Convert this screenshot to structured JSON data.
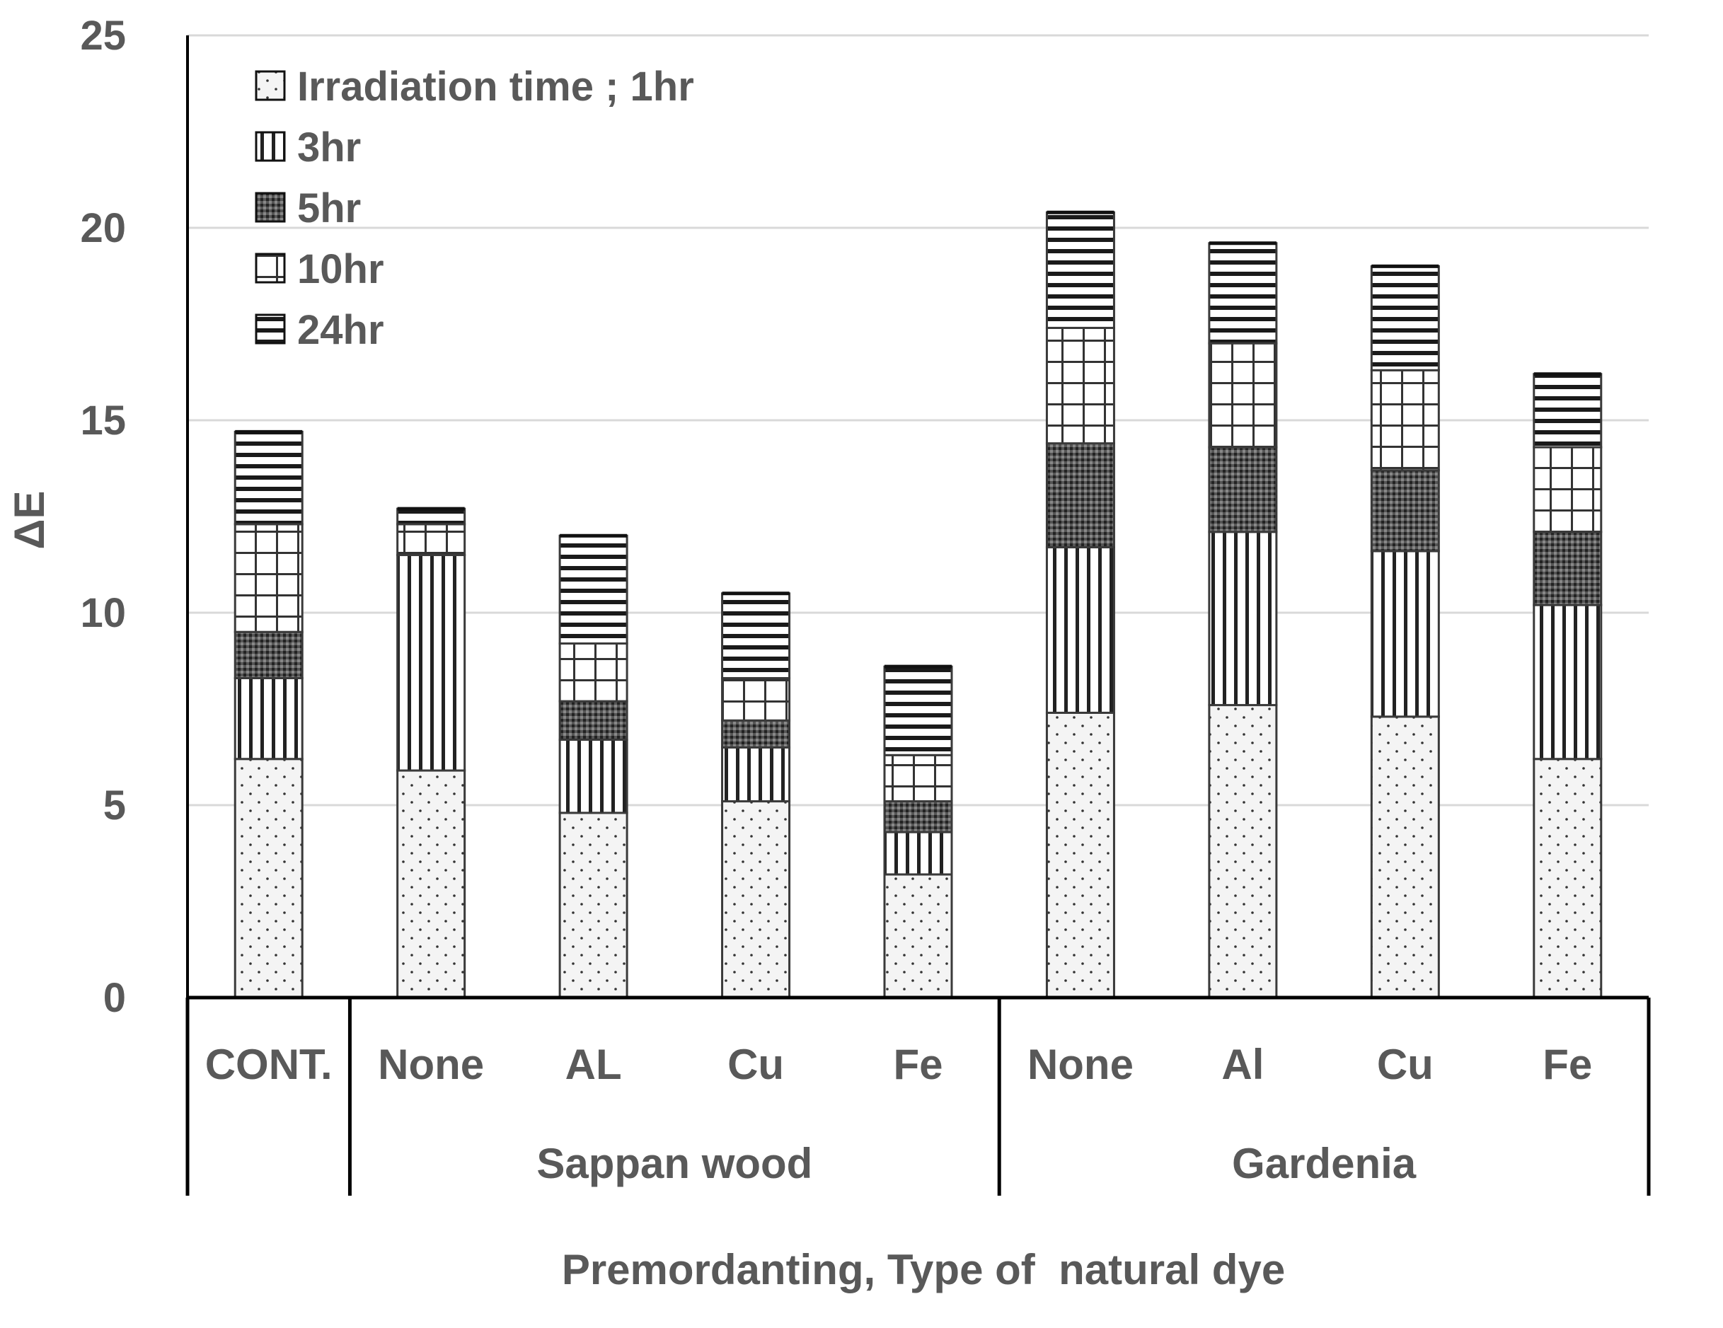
{
  "chart_data": {
    "type": "bar",
    "stacked": true,
    "ylabel": "ΔE",
    "xlabel": "Premordanting, Type of  natural dye",
    "ylim": [
      0,
      25
    ],
    "yticks": [
      0,
      5,
      10,
      15,
      20,
      25
    ],
    "grid": true,
    "legend_position": "top-left",
    "categories": [
      "CONT.",
      "None",
      "AL",
      "Cu",
      "Fe",
      "None",
      "Al",
      "Cu",
      "Fe"
    ],
    "groups": [
      {
        "label": "",
        "categories": [
          0
        ]
      },
      {
        "label": "Sappan wood",
        "categories": [
          1,
          2,
          3,
          4
        ]
      },
      {
        "label": "Gardenia",
        "categories": [
          5,
          6,
          7,
          8
        ]
      }
    ],
    "series": [
      {
        "name": "Irradiation time ; 1hr",
        "pattern": "dots",
        "values": [
          6.2,
          5.9,
          4.8,
          5.1,
          3.2,
          7.4,
          7.6,
          7.3,
          6.2
        ]
      },
      {
        "name": "3hr",
        "pattern": "vlines",
        "values": [
          2.1,
          5.6,
          1.9,
          1.4,
          1.1,
          4.3,
          4.5,
          4.3,
          4.0
        ]
      },
      {
        "name": "5hr",
        "pattern": "dense",
        "values": [
          1.2,
          0.0,
          1.0,
          0.7,
          0.8,
          2.7,
          2.2,
          2.1,
          1.9
        ]
      },
      {
        "name": "10hr",
        "pattern": "grid",
        "values": [
          2.8,
          0.8,
          1.5,
          1.1,
          1.2,
          3.0,
          2.7,
          2.6,
          2.2
        ]
      },
      {
        "name": "24hr",
        "pattern": "hlines",
        "values": [
          2.4,
          0.4,
          2.8,
          2.2,
          2.3,
          3.0,
          2.6,
          2.7,
          1.9
        ]
      }
    ],
    "colors": {
      "fill": "#ffffff",
      "stroke": "#3a3a3a",
      "grid": "#d9d9d9",
      "axis": "#000000",
      "text": "#595959"
    }
  }
}
